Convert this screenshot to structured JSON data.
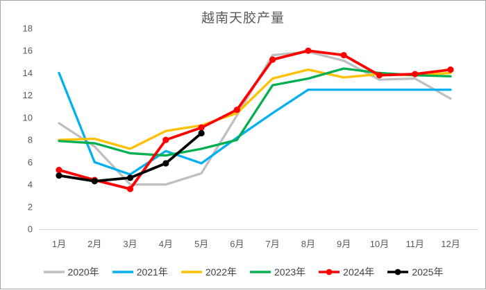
{
  "title": "越南天胶产量",
  "axes": {
    "y_ticks": [
      0,
      2,
      4,
      6,
      8,
      10,
      12,
      14,
      16,
      18
    ],
    "x_labels": [
      "1月",
      "2月",
      "3月",
      "4月",
      "5月",
      "6月",
      "7月",
      "8月",
      "9月",
      "10月",
      "11月",
      "12月"
    ]
  },
  "colors": {
    "axis_text": "#595959",
    "axis_line": "#d9d9d9",
    "title_text": "#595959",
    "legend_text": "#404040"
  },
  "chart_data": {
    "type": "line",
    "title": "越南天胶产量",
    "categories": [
      "1月",
      "2月",
      "3月",
      "4月",
      "5月",
      "6月",
      "7月",
      "8月",
      "9月",
      "10月",
      "11月",
      "12月"
    ],
    "ylim": [
      0,
      18
    ],
    "ytick_step": 2,
    "grid": false,
    "legend_position": "bottom",
    "series": [
      {
        "name": "2020年",
        "color": "#bfbfbf",
        "marker": false,
        "values": [
          9.5,
          7.4,
          4.0,
          4.0,
          5.0,
          10.2,
          15.6,
          15.9,
          15.1,
          13.4,
          13.5,
          11.7
        ]
      },
      {
        "name": "2021年",
        "color": "#00b0f0",
        "marker": false,
        "values": [
          14.0,
          6.0,
          4.9,
          7.0,
          5.9,
          8.2,
          10.4,
          12.5,
          12.5,
          12.5,
          12.5,
          12.5
        ]
      },
      {
        "name": "2022年",
        "color": "#ffc000",
        "marker": false,
        "values": [
          8.0,
          8.1,
          7.2,
          8.8,
          9.3,
          10.4,
          13.5,
          14.3,
          13.6,
          13.9,
          13.8,
          14.0
        ]
      },
      {
        "name": "2023年",
        "color": "#00b050",
        "marker": false,
        "values": [
          7.9,
          7.7,
          6.8,
          6.6,
          7.2,
          8.0,
          12.9,
          13.5,
          14.4,
          14.0,
          13.8,
          13.7
        ]
      },
      {
        "name": "2024年",
        "color": "#ff0000",
        "marker": true,
        "values": [
          5.3,
          4.4,
          3.6,
          8.0,
          9.1,
          10.7,
          15.2,
          16.0,
          15.6,
          13.8,
          13.9,
          14.3
        ]
      },
      {
        "name": "2025年",
        "color": "#000000",
        "marker": true,
        "values": [
          4.8,
          4.3,
          4.6,
          5.9,
          8.6
        ]
      }
    ]
  }
}
